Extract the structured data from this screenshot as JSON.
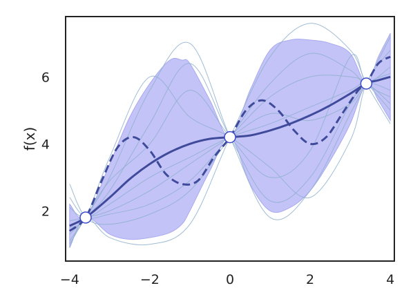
{
  "chart_data": {
    "type": "line",
    "title": "",
    "xlabel": "",
    "ylabel": "f(x)",
    "xlim": [
      -4.1,
      4.1
    ],
    "ylim": [
      0.5,
      7.8
    ],
    "xticks": [
      -4,
      -2,
      0,
      2,
      4
    ],
    "xtick_labels": [
      "−4",
      "−2",
      "0",
      "2",
      "4"
    ],
    "yticks": [
      2,
      4,
      6
    ],
    "ytick_labels": [
      "2",
      "4",
      "6"
    ],
    "grid": false,
    "legend": "none",
    "colors": {
      "mean": "#3f4b9a",
      "band": "#b9b9f7",
      "band_edge": "#a9a9f0",
      "samples": "#8fb0cc",
      "frame": "#222222",
      "point_fill": "#ffffff",
      "point_edge": "#3c49c9"
    },
    "observations": {
      "x": [
        -3.6,
        0.0,
        3.4
      ],
      "y": [
        1.8,
        4.2,
        5.8
      ]
    },
    "mean": {
      "x": [
        -4.0,
        -3.6,
        -3.0,
        -2.5,
        -2.0,
        -1.5,
        -1.0,
        -0.5,
        0.0,
        0.5,
        1.0,
        1.5,
        2.0,
        2.5,
        3.0,
        3.4,
        3.7,
        4.0
      ],
      "y": [
        1.55,
        1.8,
        2.4,
        2.95,
        3.4,
        3.75,
        4.0,
        4.15,
        4.2,
        4.25,
        4.4,
        4.6,
        4.85,
        5.15,
        5.5,
        5.8,
        5.9,
        6.0
      ]
    },
    "true_function": {
      "x": [
        -4.0,
        -3.6,
        -3.2,
        -2.8,
        -2.4,
        -2.0,
        -1.6,
        -1.2,
        -0.8,
        -0.4,
        0.0,
        0.4,
        0.8,
        1.2,
        1.6,
        2.0,
        2.4,
        2.8,
        3.2,
        3.4,
        3.7,
        4.0
      ],
      "y": [
        1.4,
        1.8,
        2.9,
        3.9,
        4.2,
        3.8,
        3.1,
        2.8,
        2.9,
        3.6,
        4.2,
        5.0,
        5.3,
        5.0,
        4.4,
        4.0,
        4.2,
        4.9,
        5.6,
        5.8,
        6.4,
        6.6
      ]
    },
    "confidence_band": {
      "x": [
        -4.0,
        -3.6,
        -3.0,
        -2.5,
        -2.0,
        -1.5,
        -1.2,
        -1.0,
        -0.5,
        0.0,
        0.5,
        1.0,
        1.5,
        2.0,
        2.5,
        3.0,
        3.4,
        3.7,
        4.0
      ],
      "lower": [
        0.9,
        1.8,
        1.3,
        1.15,
        1.2,
        1.35,
        1.6,
        2.0,
        3.2,
        4.2,
        2.8,
        2.0,
        2.1,
        2.6,
        3.5,
        4.6,
        5.8,
        5.3,
        4.7
      ],
      "upper": [
        2.2,
        1.8,
        3.4,
        4.8,
        5.8,
        6.5,
        6.5,
        6.4,
        5.3,
        4.2,
        5.6,
        6.8,
        7.1,
        7.1,
        7.0,
        6.7,
        5.8,
        6.6,
        7.3
      ]
    },
    "samples": [
      {
        "x": [
          -4.0,
          -3.6,
          -3.0,
          -2.0,
          -1.0,
          0.0,
          1.0,
          2.0,
          3.0,
          3.4,
          4.0
        ],
        "y": [
          1.3,
          1.8,
          2.6,
          4.6,
          6.4,
          4.2,
          2.3,
          3.0,
          5.2,
          5.8,
          5.6
        ]
      },
      {
        "x": [
          -4.0,
          -3.6,
          -3.0,
          -2.0,
          -1.0,
          0.0,
          1.0,
          2.0,
          3.0,
          3.4,
          4.0
        ],
        "y": [
          2.8,
          1.8,
          1.6,
          1.9,
          2.6,
          4.2,
          5.8,
          6.7,
          6.2,
          5.8,
          6.3
        ]
      },
      {
        "x": [
          -4.0,
          -3.6,
          -3.0,
          -2.0,
          -1.0,
          0.0,
          1.0,
          2.0,
          3.0,
          3.4,
          4.0
        ],
        "y": [
          1.1,
          1.8,
          3.0,
          5.6,
          7.0,
          4.2,
          1.8,
          2.6,
          4.9,
          5.8,
          7.2
        ]
      },
      {
        "x": [
          -4.0,
          -3.6,
          -3.0,
          -2.0,
          -1.0,
          0.0,
          1.0,
          2.0,
          3.0,
          3.4,
          4.0
        ],
        "y": [
          2.1,
          1.8,
          2.2,
          3.0,
          3.6,
          4.2,
          4.6,
          5.1,
          5.6,
          5.8,
          5.2
        ]
      },
      {
        "x": [
          -4.0,
          -3.6,
          -3.0,
          -2.0,
          -1.0,
          0.0,
          1.0,
          2.0,
          3.0,
          3.4,
          4.0
        ],
        "y": [
          0.9,
          1.8,
          1.2,
          1.0,
          1.6,
          4.2,
          6.6,
          7.6,
          6.8,
          5.8,
          4.6
        ]
      },
      {
        "x": [
          -4.0,
          -3.6,
          -3.0,
          -2.0,
          -1.0,
          0.0,
          1.0,
          2.0,
          3.0,
          3.4,
          4.0
        ],
        "y": [
          1.7,
          1.8,
          2.0,
          2.6,
          3.4,
          4.2,
          4.9,
          4.7,
          5.2,
          5.8,
          6.1
        ]
      },
      {
        "x": [
          -4.0,
          -3.6,
          -3.0,
          -2.0,
          -1.0,
          0.0,
          1.0,
          2.0,
          3.0,
          3.4,
          4.0
        ],
        "y": [
          1.5,
          1.8,
          3.6,
          6.0,
          4.8,
          4.2,
          3.3,
          2.4,
          4.1,
          5.8,
          6.8
        ]
      },
      {
        "x": [
          -4.0,
          -3.6,
          -3.0,
          -2.0,
          -1.0,
          0.0,
          1.0,
          2.0,
          3.0,
          3.4,
          4.0
        ],
        "y": [
          2.4,
          1.8,
          1.9,
          2.2,
          2.9,
          4.2,
          5.4,
          6.0,
          6.0,
          5.8,
          5.0
        ]
      },
      {
        "x": [
          -4.0,
          -3.6,
          -3.0,
          -2.0,
          -1.0,
          0.0,
          1.0,
          2.0,
          3.0,
          3.4,
          4.0
        ],
        "y": [
          1.0,
          1.8,
          2.9,
          4.0,
          5.6,
          4.2,
          3.0,
          3.8,
          6.6,
          5.8,
          5.4
        ]
      }
    ]
  }
}
